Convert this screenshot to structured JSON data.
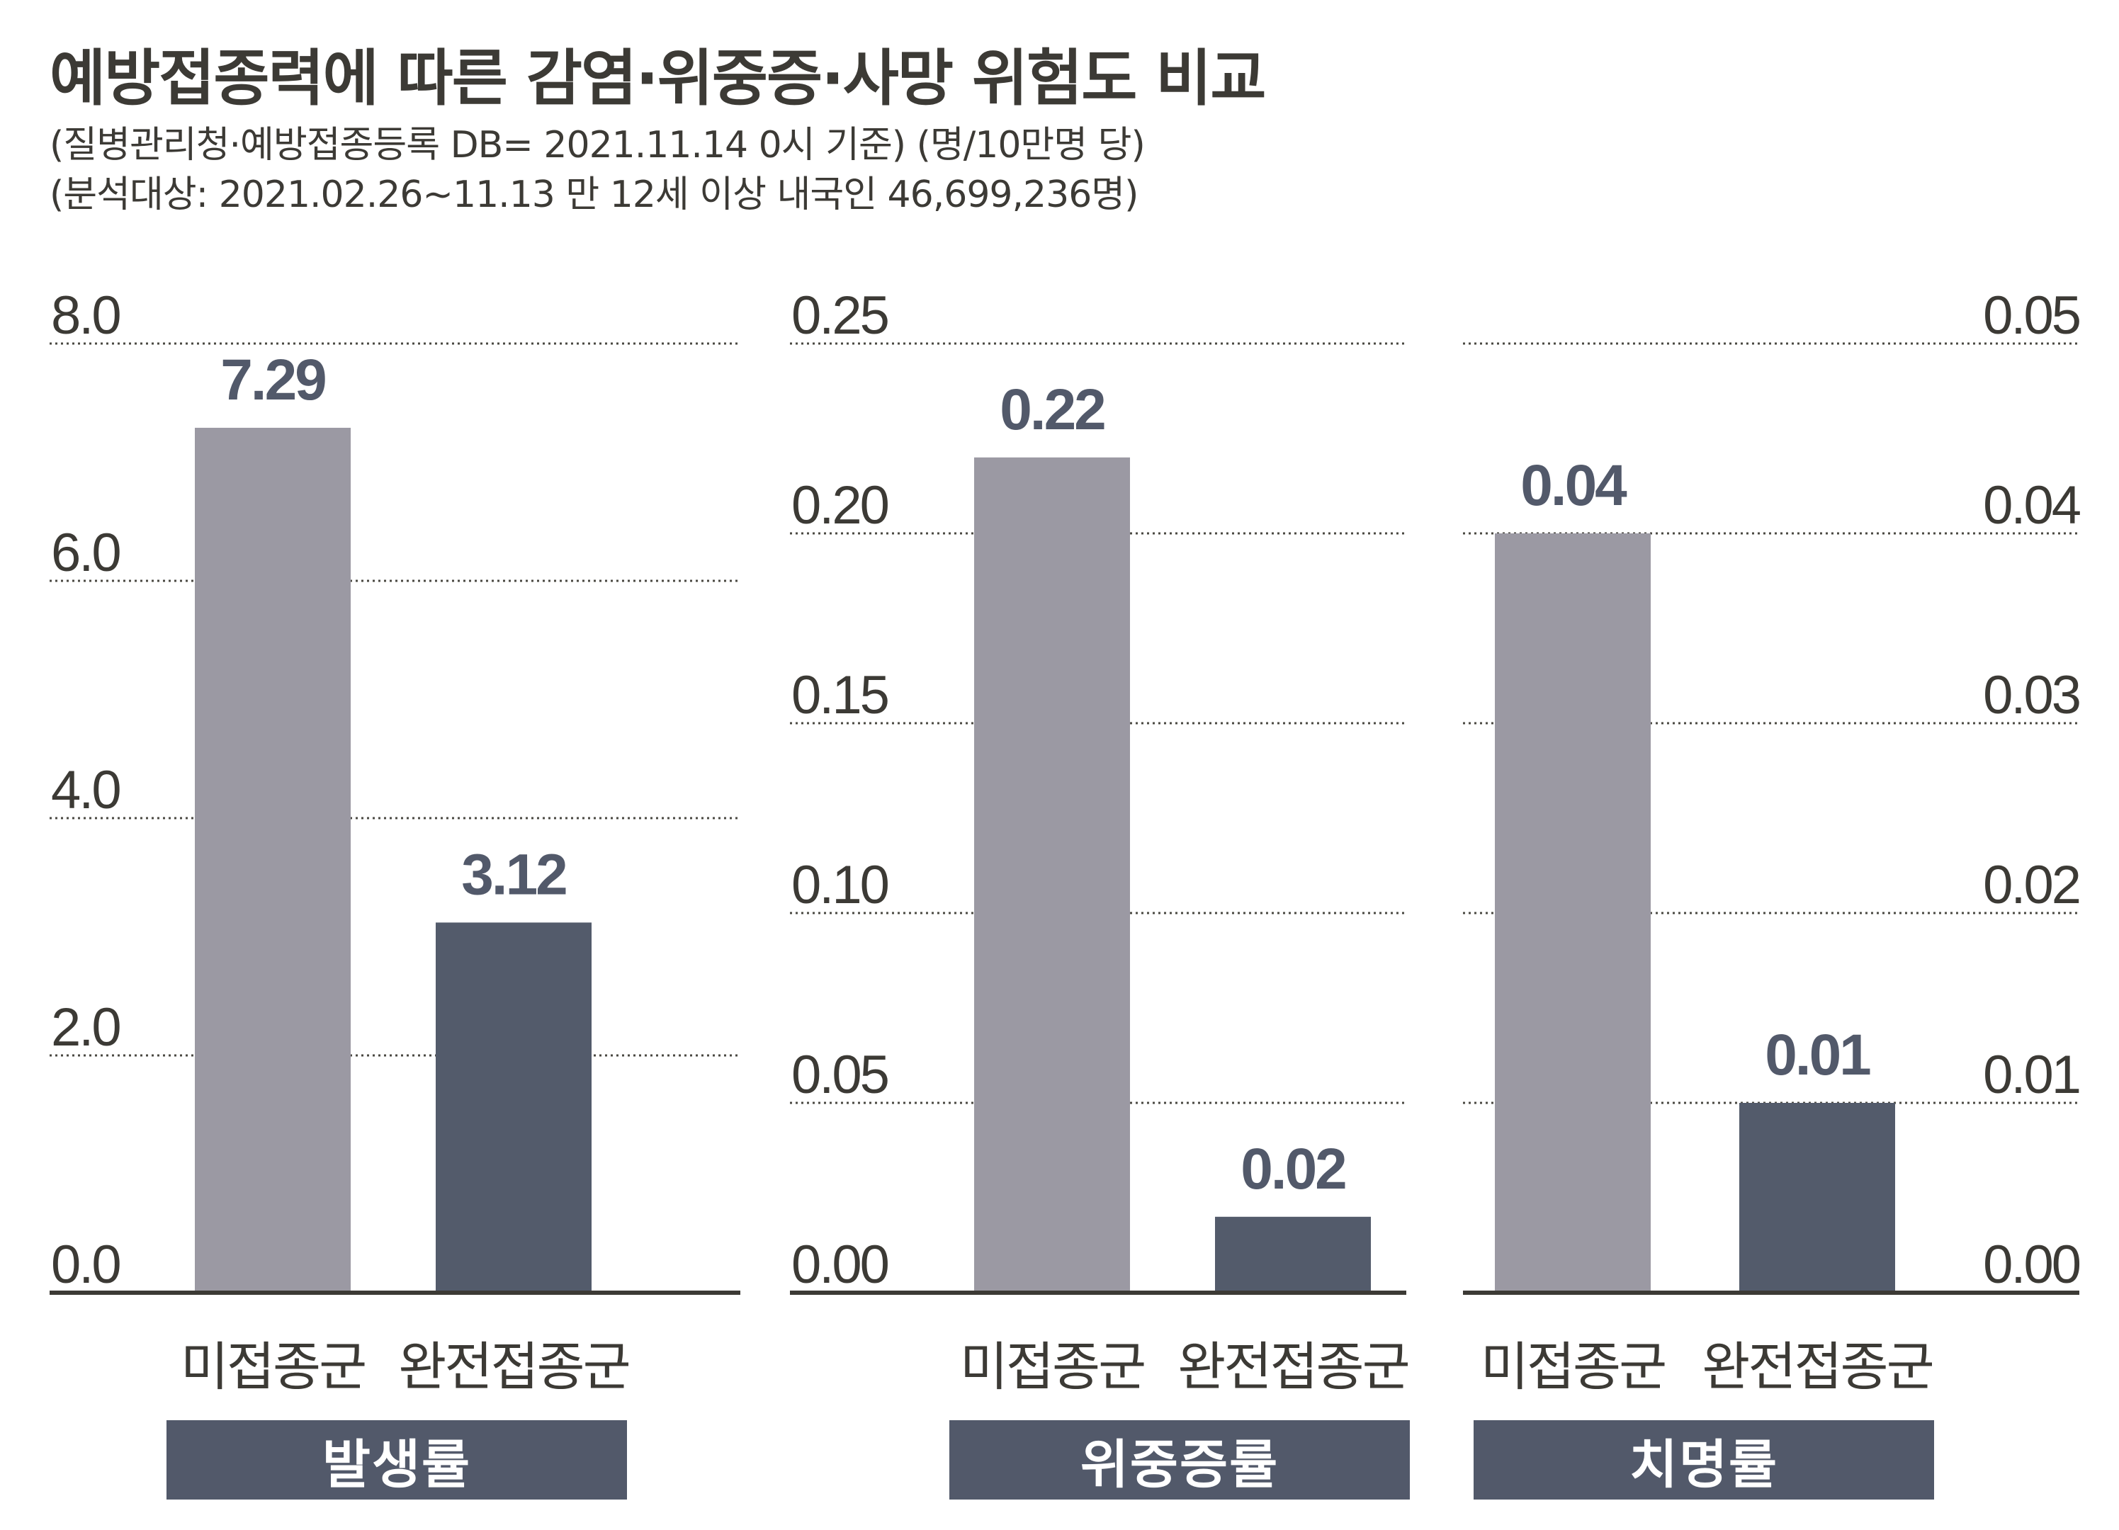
{
  "title": "예방접종력에 따른 감염·위중증·사망 위험도 비교",
  "subtitle_lines": [
    "(질병관리청·예방접종등록 DB= 2021.11.14 0시 기준) (명/10만명 당)",
    "(분석대상: 2021.02.26~11.13 만 12세 이상 내국인 46,699,236명)"
  ],
  "colors": {
    "unvaccinated": "#9b99a3",
    "vaccinated": "#535b6b",
    "text": "#3c3a35",
    "value_label": "#52596a",
    "badge": "#52596a"
  },
  "chart_data": [
    {
      "type": "bar",
      "title": "발생률",
      "categories": [
        "미접종군",
        "완전접종군"
      ],
      "values": [
        7.29,
        3.12
      ],
      "value_labels": [
        "7.29",
        "3.12"
      ],
      "ylim": [
        0,
        8
      ],
      "yticks": [
        "0.0",
        "2.0",
        "4.0",
        "6.0",
        "8.0"
      ],
      "grid": true
    },
    {
      "type": "bar",
      "title": "위중증률",
      "categories": [
        "미접종군",
        "완전접종군"
      ],
      "values": [
        0.22,
        0.02
      ],
      "value_labels": [
        "0.22",
        "0.02"
      ],
      "ylim": [
        0,
        0.25
      ],
      "yticks": [
        "0.00",
        "0.05",
        "0.10",
        "0.15",
        "0.20",
        "0.25"
      ],
      "grid": true
    },
    {
      "type": "bar",
      "title": "치명률",
      "categories": [
        "미접종군",
        "완전접종군"
      ],
      "values": [
        0.04,
        0.01
      ],
      "value_labels": [
        "0.04",
        "0.01"
      ],
      "ylim": [
        0,
        0.05
      ],
      "yticks": [
        "0.00",
        "0.01",
        "0.02",
        "0.03",
        "0.04",
        "0.05"
      ],
      "grid": true
    }
  ]
}
